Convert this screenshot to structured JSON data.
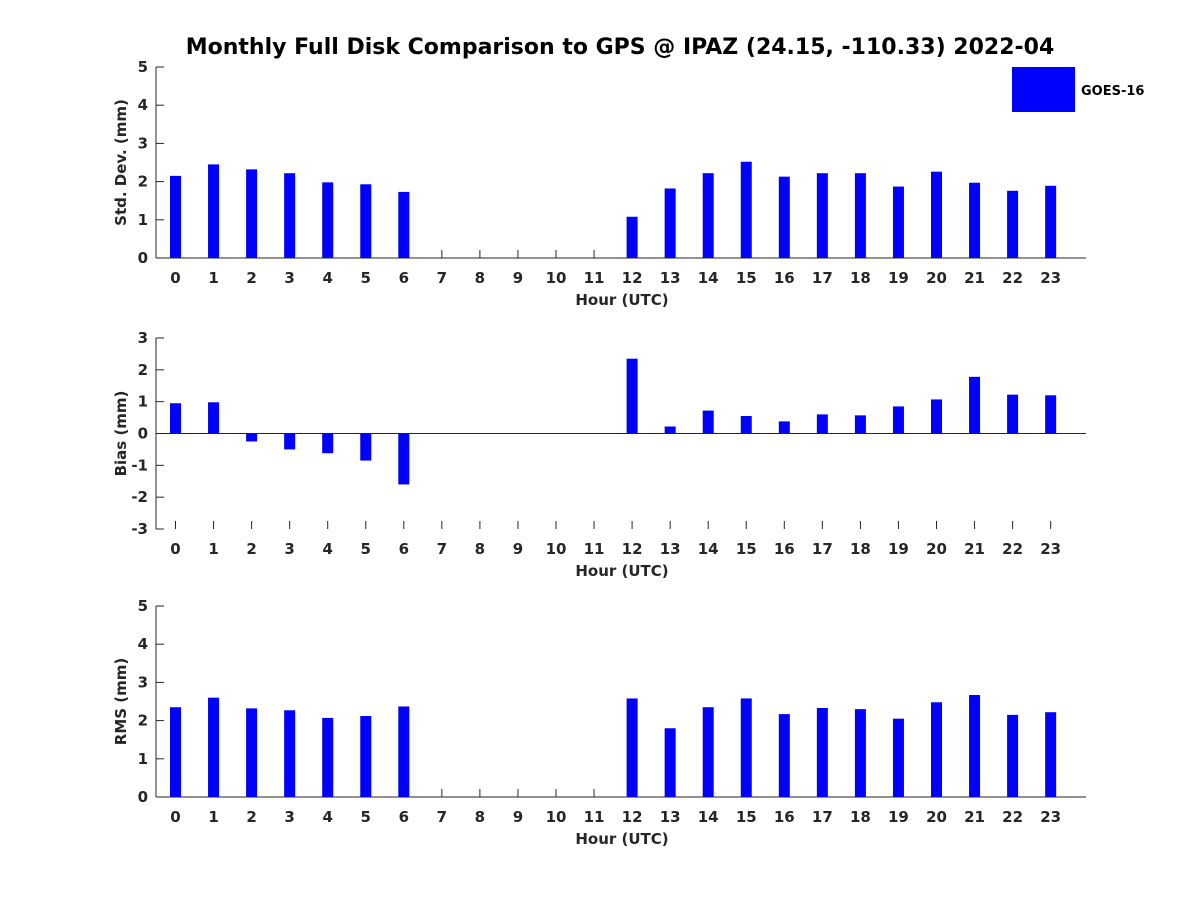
{
  "chart_data": {
    "type": "bar",
    "title": "Monthly Full Disk Comparison to GPS @ IPAZ (24.15, -110.33) 2022-04",
    "legend": {
      "label": "GOES-16",
      "color": "#0000ff",
      "position": "top-right"
    },
    "bar_color": "#0000ff",
    "panels": [
      {
        "id": "std",
        "ylabel": "Std. Dev. (mm)",
        "xlabel": "Hour (UTC)",
        "ylim": [
          0,
          5
        ],
        "yticks": [
          0,
          1,
          2,
          3,
          4,
          5
        ],
        "categories": [
          "0",
          "1",
          "2",
          "3",
          "4",
          "5",
          "6",
          "7",
          "8",
          "9",
          "10",
          "11",
          "12",
          "13",
          "14",
          "15",
          "16",
          "17",
          "18",
          "19",
          "20",
          "21",
          "22",
          "23"
        ],
        "values": [
          2.15,
          2.45,
          2.32,
          2.22,
          1.98,
          1.93,
          1.73,
          null,
          null,
          null,
          null,
          null,
          1.08,
          1.82,
          2.22,
          2.52,
          2.13,
          2.22,
          2.22,
          1.87,
          2.26,
          1.97,
          1.76,
          1.89
        ]
      },
      {
        "id": "bias",
        "ylabel": "Bias (mm)",
        "xlabel": "Hour (UTC)",
        "ylim": [
          -3,
          3
        ],
        "yticks": [
          -3,
          -2,
          -1,
          0,
          1,
          2,
          3
        ],
        "categories": [
          "0",
          "1",
          "2",
          "3",
          "4",
          "5",
          "6",
          "7",
          "8",
          "9",
          "10",
          "11",
          "12",
          "13",
          "14",
          "15",
          "16",
          "17",
          "18",
          "19",
          "20",
          "21",
          "22",
          "23"
        ],
        "values": [
          0.95,
          0.98,
          -0.25,
          -0.5,
          -0.62,
          -0.85,
          -1.6,
          null,
          null,
          null,
          null,
          null,
          2.35,
          0.22,
          0.72,
          0.55,
          0.38,
          0.6,
          0.57,
          0.85,
          1.07,
          1.78,
          1.22,
          1.2
        ]
      },
      {
        "id": "rms",
        "ylabel": "RMS (mm)",
        "xlabel": "Hour (UTC)",
        "ylim": [
          0,
          5
        ],
        "yticks": [
          0,
          1,
          2,
          3,
          4,
          5
        ],
        "categories": [
          "0",
          "1",
          "2",
          "3",
          "4",
          "5",
          "6",
          "7",
          "8",
          "9",
          "10",
          "11",
          "12",
          "13",
          "14",
          "15",
          "16",
          "17",
          "18",
          "19",
          "20",
          "21",
          "22",
          "23"
        ],
        "values": [
          2.35,
          2.6,
          2.32,
          2.27,
          2.07,
          2.12,
          2.37,
          null,
          null,
          null,
          null,
          null,
          2.58,
          1.8,
          2.35,
          2.58,
          2.17,
          2.33,
          2.3,
          2.05,
          2.48,
          2.67,
          2.15,
          2.22
        ]
      }
    ]
  }
}
